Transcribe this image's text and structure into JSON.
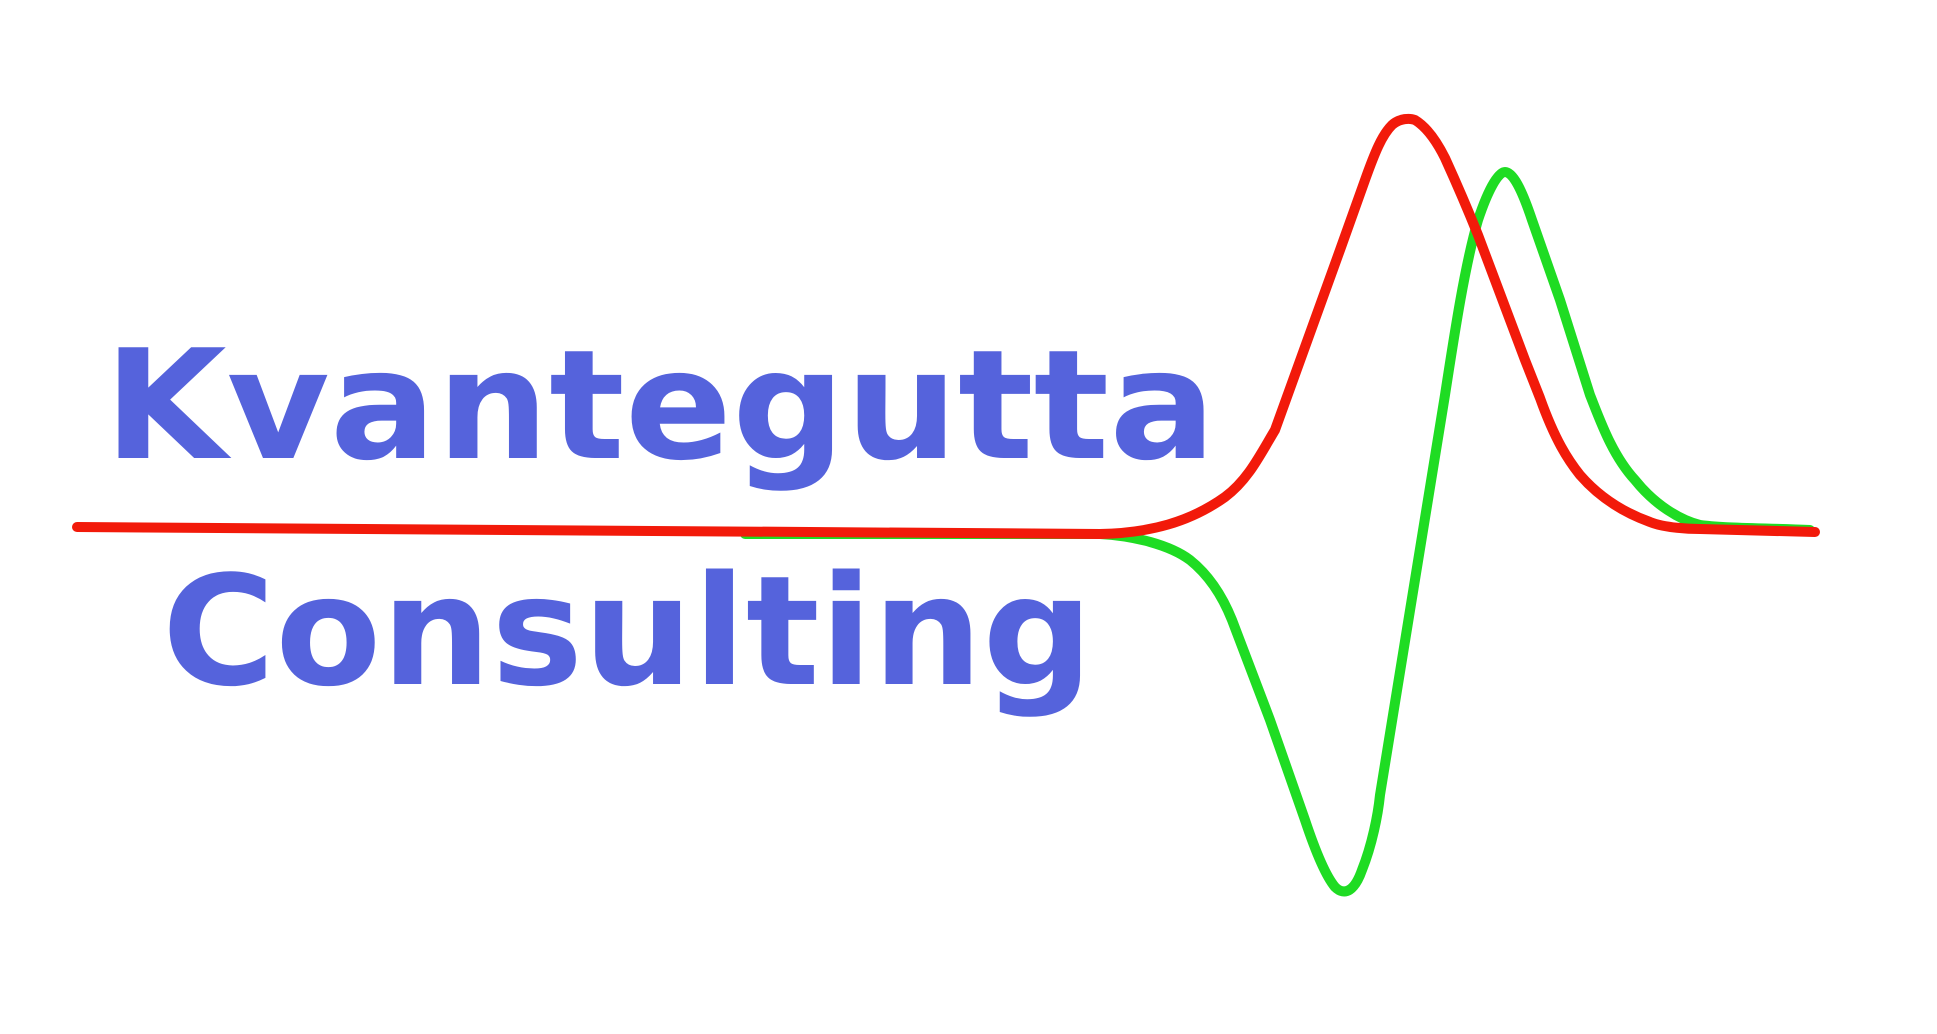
{
  "logo": {
    "line1": "Kvantegutta",
    "line2": "Consulting",
    "text_color": "#5563DC",
    "wave_red_color": "#F21A0A",
    "wave_green_color": "#1FDC23",
    "background": "#FFFFFF"
  }
}
